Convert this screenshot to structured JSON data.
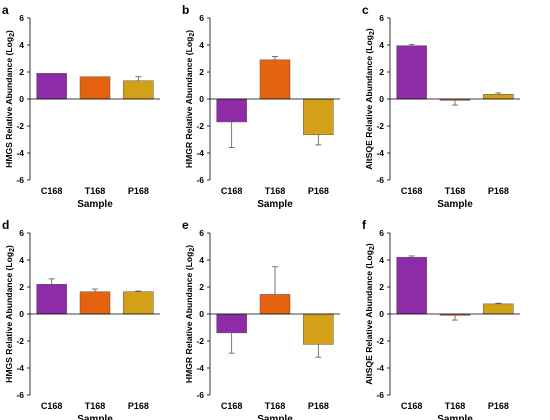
{
  "colors": {
    "C168": "#8e2ba6",
    "T168": "#e5630f",
    "P168": "#d4a017"
  },
  "chart_data": [
    {
      "panel_label": "a",
      "type": "bar",
      "ylabel": "HMGS Relative Abundance (Log",
      "ylabel_sub": "2",
      "ylabel_tail": ")",
      "xlabel": "Sample",
      "categories": [
        "C168",
        "T168",
        "P168"
      ],
      "values": [
        1.9,
        1.65,
        1.35
      ],
      "errors": [
        0.0,
        0.0,
        0.3
      ],
      "ylim": [
        -6,
        6
      ],
      "yticks": [
        "-6",
        "-4",
        "-2",
        "0",
        "2",
        "4",
        "6"
      ]
    },
    {
      "panel_label": "b",
      "type": "bar",
      "ylabel": "HMGR Relative Abundance (Log",
      "ylabel_sub": "2",
      "ylabel_tail": ")",
      "xlabel": "Sample",
      "categories": [
        "C168",
        "T168",
        "P168"
      ],
      "values": [
        -1.7,
        2.9,
        -2.65
      ],
      "errors": [
        1.9,
        0.25,
        0.75
      ],
      "ylim": [
        -6,
        6
      ],
      "yticks": [
        "-6",
        "-4",
        "-2",
        "0",
        "2",
        "4",
        "6"
      ]
    },
    {
      "panel_label": "c",
      "type": "bar",
      "ylabel": "AltSQE Relative Abundance (Log",
      "ylabel_sub": "2",
      "ylabel_tail": ")",
      "xlabel": "Sample",
      "categories": [
        "C168",
        "T168",
        "P168"
      ],
      "values": [
        3.95,
        -0.1,
        0.35
      ],
      "errors": [
        0.1,
        0.35,
        0.1
      ],
      "ylim": [
        -6,
        6
      ],
      "yticks": [
        "-6",
        "-4",
        "-2",
        "0",
        "2",
        "4",
        "6"
      ]
    },
    {
      "panel_label": "d",
      "type": "bar",
      "ylabel": "HMGS Relative Abundance (Log",
      "ylabel_sub": "2",
      "ylabel_tail": ")",
      "xlabel": "Sample",
      "categories": [
        "C168",
        "T168",
        "P168"
      ],
      "values": [
        2.2,
        1.65,
        1.65
      ],
      "errors": [
        0.4,
        0.2,
        0.05
      ],
      "ylim": [
        -6,
        6
      ],
      "yticks": [
        "-6",
        "-4",
        "-2",
        "0",
        "2",
        "4",
        "6"
      ]
    },
    {
      "panel_label": "e",
      "type": "bar",
      "ylabel": "HMGR Relative Abundance (Log",
      "ylabel_sub": "2",
      "ylabel_tail": ")",
      "xlabel": "Sample",
      "categories": [
        "C168",
        "T168",
        "P168"
      ],
      "values": [
        -1.4,
        1.45,
        -2.25
      ],
      "errors": [
        1.5,
        2.05,
        0.95
      ],
      "ylim": [
        -6,
        6
      ],
      "yticks": [
        "-6",
        "-4",
        "-2",
        "0",
        "2",
        "4",
        "6"
      ]
    },
    {
      "panel_label": "f",
      "type": "bar",
      "ylabel": "AltSQE Relative Abundance (Log",
      "ylabel_sub": "2",
      "ylabel_tail": ")",
      "xlabel": "Sample",
      "categories": [
        "C168",
        "T168",
        "P168"
      ],
      "values": [
        4.2,
        -0.1,
        0.75
      ],
      "errors": [
        0.1,
        0.35,
        0.05
      ],
      "ylim": [
        -6,
        6
      ],
      "yticks": [
        "-6",
        "-4",
        "-2",
        "0",
        "2",
        "4",
        "6"
      ]
    }
  ]
}
